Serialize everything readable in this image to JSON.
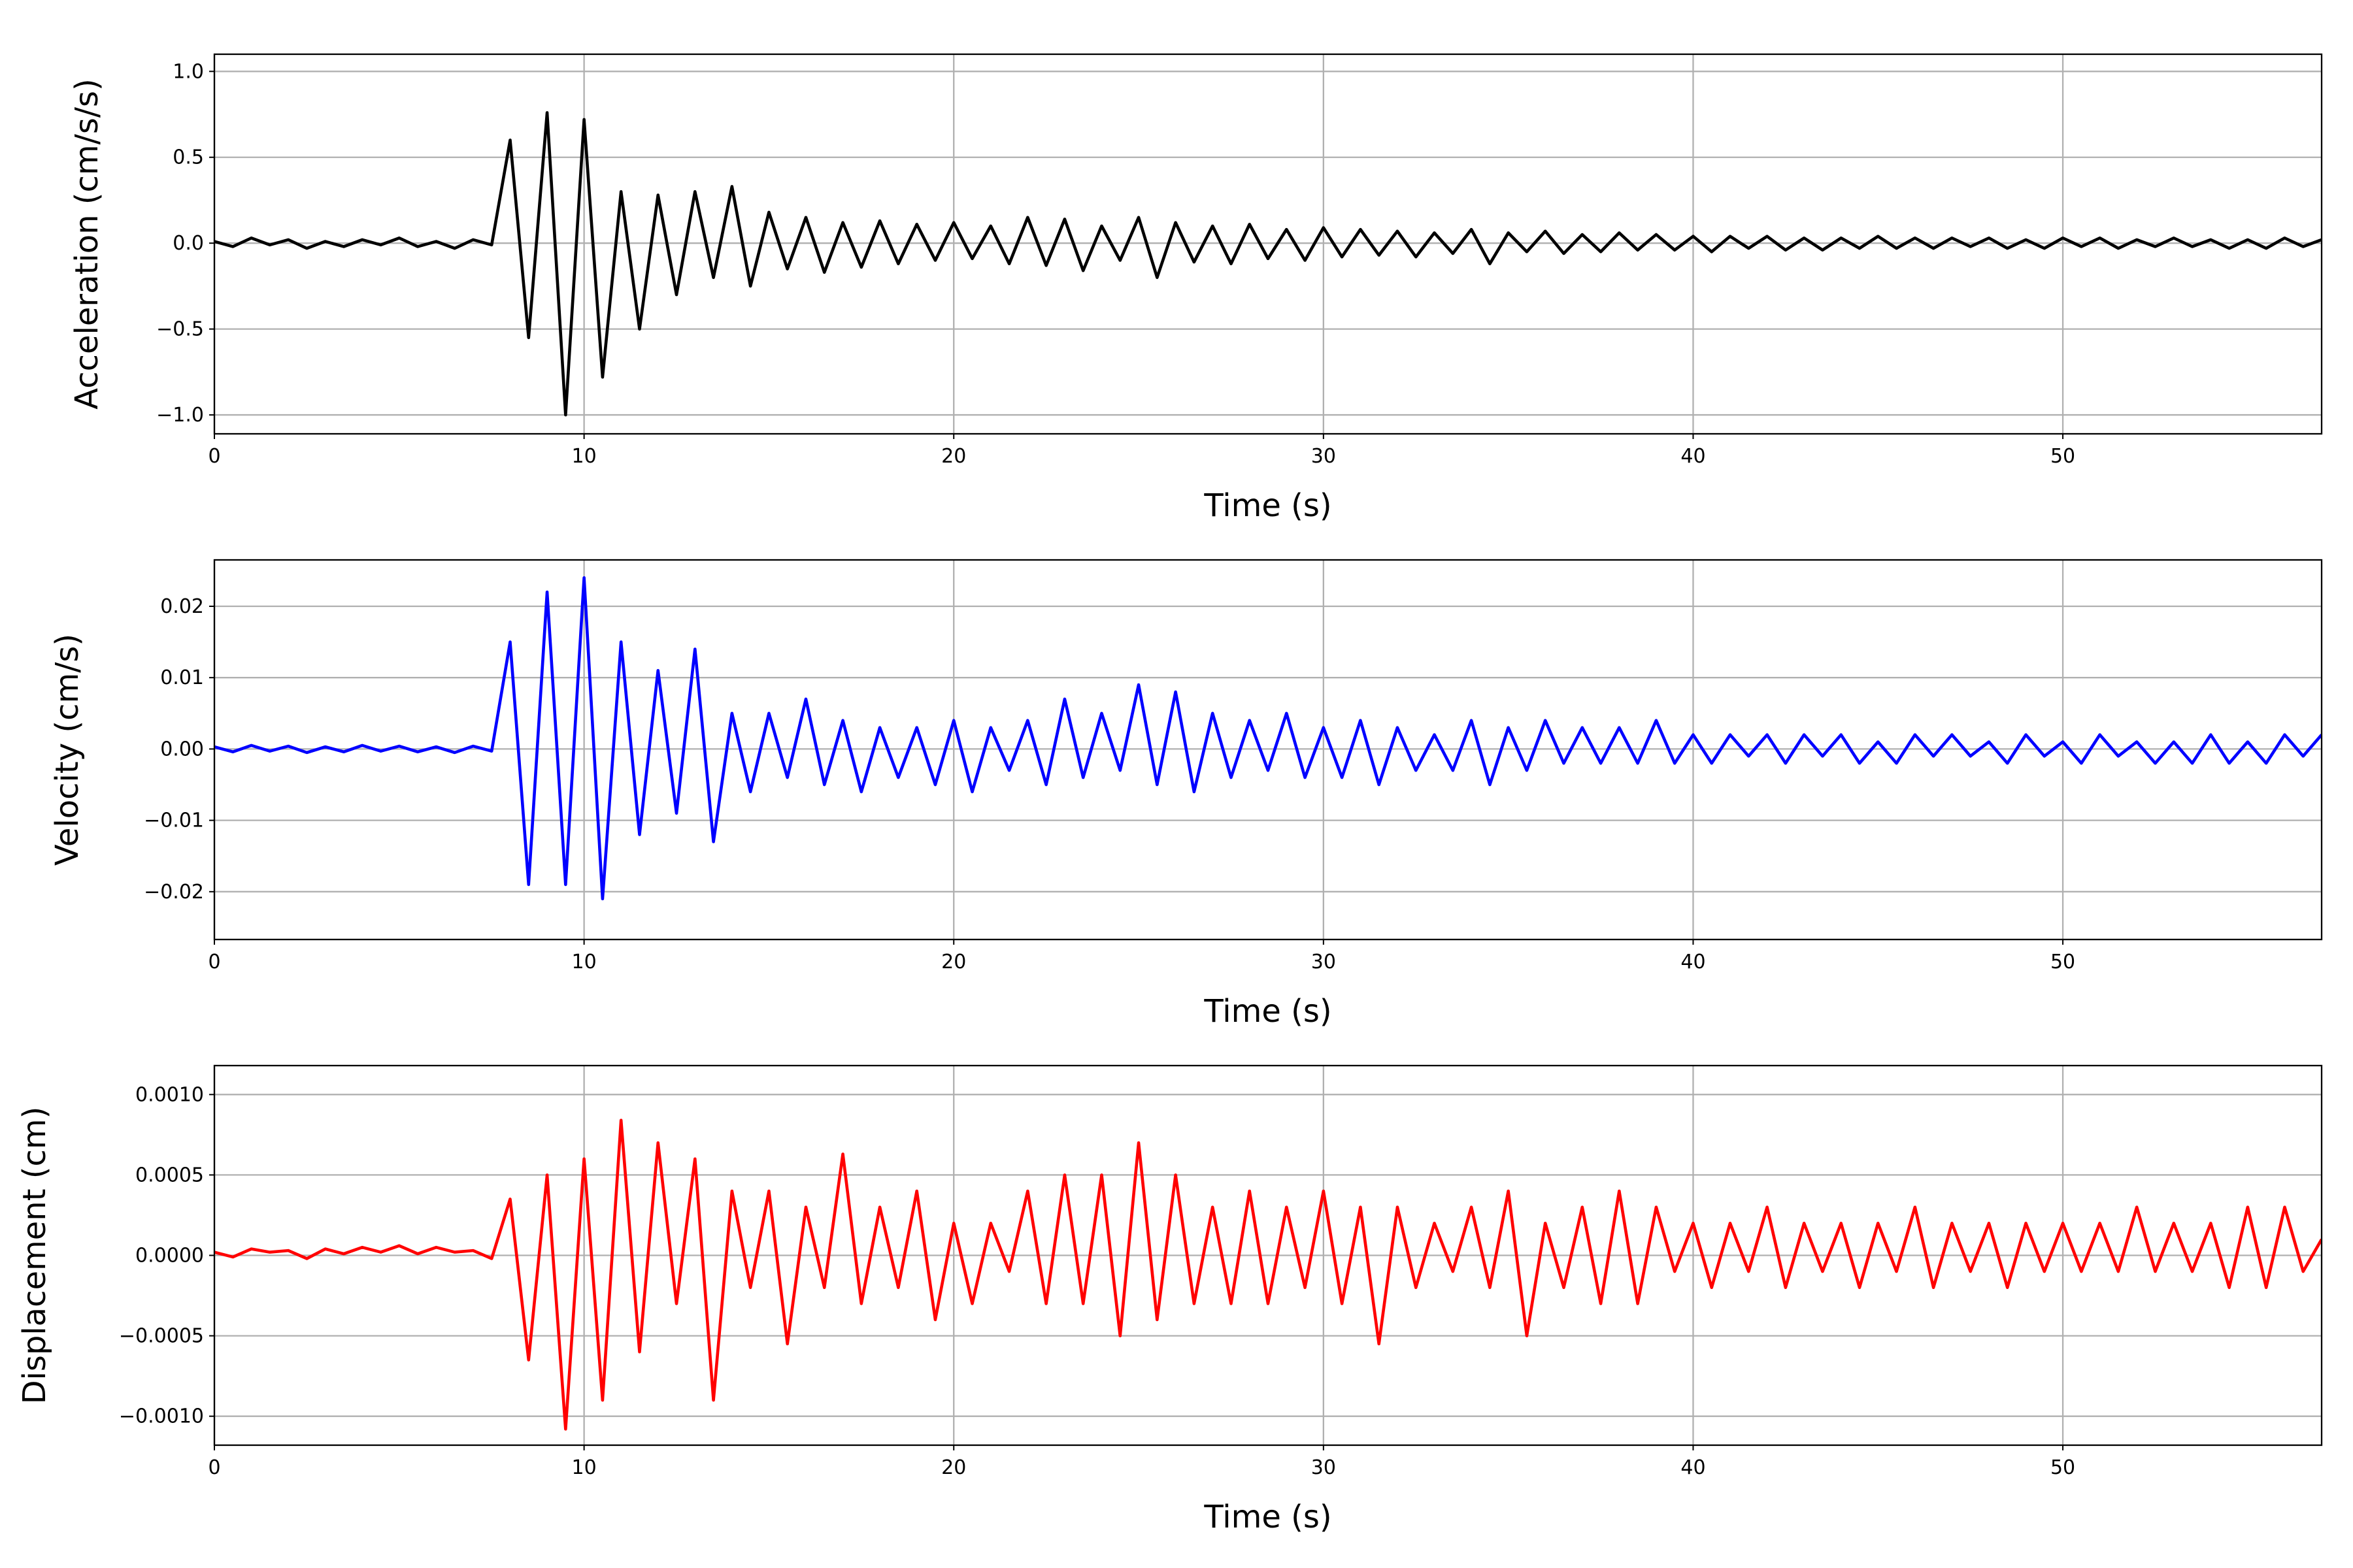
{
  "chart_data": [
    {
      "type": "line",
      "ylabel": "Acceleration (cm/s/s)",
      "xlabel": "Time (s)",
      "color": "#000000",
      "grid": true,
      "xlim": [
        0,
        57
      ],
      "xticks": [
        0,
        10,
        20,
        30,
        40,
        50
      ],
      "ylim": [
        -1.11,
        1.1
      ],
      "yticks": [
        {
          "value": -1.0,
          "label": "−1.0"
        },
        {
          "value": -0.5,
          "label": "−0.5"
        },
        {
          "value": 0.0,
          "label": "0.0"
        },
        {
          "value": 0.5,
          "label": "0.5"
        },
        {
          "value": 1.0,
          "label": "1.0"
        }
      ],
      "x": [
        0,
        0.5,
        1,
        1.5,
        2,
        2.5,
        3,
        3.5,
        4,
        4.5,
        5,
        5.5,
        6,
        6.5,
        7,
        7.5,
        8,
        8.5,
        9,
        9.5,
        10,
        10.5,
        11,
        11.5,
        12,
        12.5,
        13,
        13.5,
        14,
        14.5,
        15,
        15.5,
        16,
        16.5,
        17,
        17.5,
        18,
        18.5,
        19,
        19.5,
        20,
        20.5,
        21,
        21.5,
        22,
        22.5,
        23,
        23.5,
        24,
        24.5,
        25,
        25.5,
        26,
        26.5,
        27,
        27.5,
        28,
        28.5,
        29,
        29.5,
        30,
        30.5,
        31,
        31.5,
        32,
        32.5,
        33,
        33.5,
        34,
        34.5,
        35,
        35.5,
        36,
        36.5,
        37,
        37.5,
        38,
        38.5,
        39,
        39.5,
        40,
        40.5,
        41,
        41.5,
        42,
        42.5,
        43,
        43.5,
        44,
        44.5,
        45,
        45.5,
        46,
        46.5,
        47,
        47.5,
        48,
        48.5,
        49,
        49.5,
        50,
        50.5,
        51,
        51.5,
        52,
        52.5,
        53,
        53.5,
        54,
        54.5,
        55,
        55.5,
        56,
        56.5,
        57
      ],
      "values": [
        0.01,
        -0.02,
        0.03,
        -0.01,
        0.02,
        -0.03,
        0.01,
        -0.02,
        0.02,
        -0.01,
        0.03,
        -0.02,
        0.01,
        -0.03,
        0.02,
        -0.01,
        0.6,
        -0.55,
        0.76,
        -1.0,
        0.72,
        -0.78,
        0.3,
        -0.5,
        0.28,
        -0.3,
        0.3,
        -0.2,
        0.33,
        -0.25,
        0.18,
        -0.15,
        0.15,
        -0.17,
        0.12,
        -0.14,
        0.13,
        -0.12,
        0.11,
        -0.1,
        0.12,
        -0.09,
        0.1,
        -0.12,
        0.15,
        -0.13,
        0.14,
        -0.16,
        0.1,
        -0.1,
        0.15,
        -0.2,
        0.12,
        -0.11,
        0.1,
        -0.12,
        0.11,
        -0.09,
        0.08,
        -0.1,
        0.09,
        -0.08,
        0.08,
        -0.07,
        0.07,
        -0.08,
        0.06,
        -0.06,
        0.08,
        -0.12,
        0.06,
        -0.05,
        0.07,
        -0.06,
        0.05,
        -0.05,
        0.06,
        -0.04,
        0.05,
        -0.04,
        0.04,
        -0.05,
        0.04,
        -0.03,
        0.04,
        -0.04,
        0.03,
        -0.04,
        0.03,
        -0.03,
        0.04,
        -0.03,
        0.03,
        -0.03,
        0.03,
        -0.02,
        0.03,
        -0.03,
        0.02,
        -0.03,
        0.03,
        -0.02,
        0.03,
        -0.03,
        0.02,
        -0.02,
        0.03,
        -0.02,
        0.02,
        -0.03,
        0.02,
        -0.03,
        0.03,
        -0.02,
        0.02
      ]
    },
    {
      "type": "line",
      "ylabel": "Velocity (cm/s)",
      "xlabel": "Time (s)",
      "color": "#0000ff",
      "grid": true,
      "xlim": [
        0,
        57
      ],
      "xticks": [
        0,
        10,
        20,
        30,
        40,
        50
      ],
      "ylim": [
        -0.0267,
        0.0265
      ],
      "yticks": [
        {
          "value": -0.02,
          "label": "−0.02"
        },
        {
          "value": -0.01,
          "label": "−0.01"
        },
        {
          "value": 0.0,
          "label": "0.00"
        },
        0.01,
        0.02
      ],
      "x": [
        0,
        0.5,
        1,
        1.5,
        2,
        2.5,
        3,
        3.5,
        4,
        4.5,
        5,
        5.5,
        6,
        6.5,
        7,
        7.5,
        8,
        8.5,
        9,
        9.5,
        10,
        10.5,
        11,
        11.5,
        12,
        12.5,
        13,
        13.5,
        14,
        14.5,
        15,
        15.5,
        16,
        16.5,
        17,
        17.5,
        18,
        18.5,
        19,
        19.5,
        20,
        20.5,
        21,
        21.5,
        22,
        22.5,
        23,
        23.5,
        24,
        24.5,
        25,
        25.5,
        26,
        26.5,
        27,
        27.5,
        28,
        28.5,
        29,
        29.5,
        30,
        30.5,
        31,
        31.5,
        32,
        32.5,
        33,
        33.5,
        34,
        34.5,
        35,
        35.5,
        36,
        36.5,
        37,
        37.5,
        38,
        38.5,
        39,
        39.5,
        40,
        40.5,
        41,
        41.5,
        42,
        42.5,
        43,
        43.5,
        44,
        44.5,
        45,
        45.5,
        46,
        46.5,
        47,
        47.5,
        48,
        48.5,
        49,
        49.5,
        50,
        50.5,
        51,
        51.5,
        52,
        52.5,
        53,
        53.5,
        54,
        54.5,
        55,
        55.5,
        56,
        56.5,
        57
      ],
      "values": [
        0.0003,
        -0.0004,
        0.0005,
        -0.0003,
        0.0004,
        -0.0005,
        0.0003,
        -0.0004,
        0.0005,
        -0.0003,
        0.0004,
        -0.0004,
        0.0003,
        -0.0005,
        0.0004,
        -0.0003,
        0.015,
        -0.019,
        0.022,
        -0.019,
        0.024,
        -0.021,
        0.015,
        -0.012,
        0.011,
        -0.009,
        0.014,
        -0.013,
        0.005,
        -0.006,
        0.005,
        -0.004,
        0.007,
        -0.005,
        0.004,
        -0.006,
        0.003,
        -0.004,
        0.003,
        -0.005,
        0.004,
        -0.006,
        0.003,
        -0.003,
        0.004,
        -0.005,
        0.007,
        -0.004,
        0.005,
        -0.003,
        0.009,
        -0.005,
        0.008,
        -0.006,
        0.005,
        -0.004,
        0.004,
        -0.003,
        0.005,
        -0.004,
        0.003,
        -0.004,
        0.004,
        -0.005,
        0.003,
        -0.003,
        0.002,
        -0.003,
        0.004,
        -0.005,
        0.003,
        -0.003,
        0.004,
        -0.002,
        0.003,
        -0.002,
        0.003,
        -0.002,
        0.004,
        -0.002,
        0.002,
        -0.002,
        0.002,
        -0.001,
        0.002,
        -0.002,
        0.002,
        -0.001,
        0.002,
        -0.002,
        0.001,
        -0.002,
        0.002,
        -0.001,
        0.002,
        -0.001,
        0.001,
        -0.002,
        0.002,
        -0.001,
        0.001,
        -0.002,
        0.002,
        -0.001,
        0.001,
        -0.002,
        0.001,
        -0.002,
        0.002,
        -0.002,
        0.001,
        -0.002,
        0.002,
        -0.001,
        0.002
      ]
    },
    {
      "type": "line",
      "ylabel": "Displacement (cm)",
      "xlabel": "Time (s)",
      "color": "#ff0000",
      "grid": true,
      "xlim": [
        0,
        57
      ],
      "xticks": [
        0,
        10,
        20,
        30,
        40,
        50
      ],
      "ylim": [
        -0.00118,
        0.00118
      ],
      "yticks": [
        {
          "value": -0.001,
          "label": "−0.0010"
        },
        {
          "value": -0.0005,
          "label": "−0.0005"
        },
        {
          "value": 0.0,
          "label": "0.0000"
        },
        {
          "value": 0.0005,
          "label": "0.0005"
        },
        {
          "value": 0.001,
          "label": "0.0010"
        }
      ],
      "x": [
        0,
        0.5,
        1,
        1.5,
        2,
        2.5,
        3,
        3.5,
        4,
        4.5,
        5,
        5.5,
        6,
        6.5,
        7,
        7.5,
        8,
        8.5,
        9,
        9.5,
        10,
        10.5,
        11,
        11.5,
        12,
        12.5,
        13,
        13.5,
        14,
        14.5,
        15,
        15.5,
        16,
        16.5,
        17,
        17.5,
        18,
        18.5,
        19,
        19.5,
        20,
        20.5,
        21,
        21.5,
        22,
        22.5,
        23,
        23.5,
        24,
        24.5,
        25,
        25.5,
        26,
        26.5,
        27,
        27.5,
        28,
        28.5,
        29,
        29.5,
        30,
        30.5,
        31,
        31.5,
        32,
        32.5,
        33,
        33.5,
        34,
        34.5,
        35,
        35.5,
        36,
        36.5,
        37,
        37.5,
        38,
        38.5,
        39,
        39.5,
        40,
        40.5,
        41,
        41.5,
        42,
        42.5,
        43,
        43.5,
        44,
        44.5,
        45,
        45.5,
        46,
        46.5,
        47,
        47.5,
        48,
        48.5,
        49,
        49.5,
        50,
        50.5,
        51,
        51.5,
        52,
        52.5,
        53,
        53.5,
        54,
        54.5,
        55,
        55.5,
        56,
        56.5,
        57
      ],
      "values": [
        2e-05,
        -1e-05,
        4e-05,
        2e-05,
        3e-05,
        -2e-05,
        4e-05,
        1e-05,
        5e-05,
        2e-05,
        6e-05,
        1e-05,
        5e-05,
        2e-05,
        3e-05,
        -2e-05,
        0.00035,
        -0.00065,
        0.0005,
        -0.00108,
        0.0006,
        -0.0009,
        0.00084,
        -0.0006,
        0.0007,
        -0.0003,
        0.0006,
        -0.0009,
        0.0004,
        -0.0002,
        0.0004,
        -0.00055,
        0.0003,
        -0.0002,
        0.00063,
        -0.0003,
        0.0003,
        -0.0002,
        0.0004,
        -0.0004,
        0.0002,
        -0.0003,
        0.0002,
        -0.0001,
        0.0004,
        -0.0003,
        0.0005,
        -0.0003,
        0.0005,
        -0.0005,
        0.0007,
        -0.0004,
        0.0005,
        -0.0003,
        0.0003,
        -0.0003,
        0.0004,
        -0.0003,
        0.0003,
        -0.0002,
        0.0004,
        -0.0003,
        0.0003,
        -0.00055,
        0.0003,
        -0.0002,
        0.0002,
        -0.0001,
        0.0003,
        -0.0002,
        0.0004,
        -0.0005,
        0.0002,
        -0.0002,
        0.0003,
        -0.0003,
        0.0004,
        -0.0003,
        0.0003,
        -0.0001,
        0.0002,
        -0.0002,
        0.0002,
        -0.0001,
        0.0003,
        -0.0002,
        0.0002,
        -0.0001,
        0.0002,
        -0.0002,
        0.0002,
        -0.0001,
        0.0003,
        -0.0002,
        0.0002,
        -0.0001,
        0.0002,
        -0.0002,
        0.0002,
        -0.0001,
        0.0002,
        -0.0001,
        0.0002,
        -0.0001,
        0.0003,
        -0.0001,
        0.0002,
        -0.0001,
        0.0002,
        -0.0002,
        0.0003,
        -0.0002,
        0.0003,
        -0.0001,
        0.0001
      ]
    }
  ]
}
